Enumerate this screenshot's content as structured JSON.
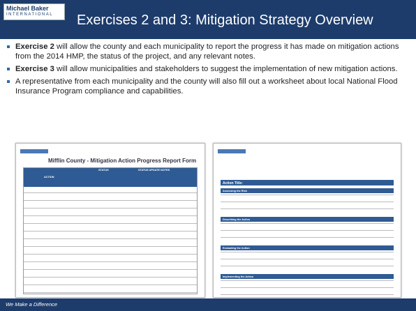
{
  "header": {
    "logo_line1": "Michael Baker",
    "logo_line2": "INTERNATIONAL",
    "title": "Exercises 2 and 3: Mitigation Strategy Overview"
  },
  "bullets": [
    {
      "bold": "Exercise 2",
      "text": " will allow the county and each municipality to report the progress it has made on mitigation actions from the 2014 HMP, the status of the project, and any relevant notes."
    },
    {
      "bold": "Exercise 3",
      "text": " will allow municipalities and stakeholders to suggest the implementation of new mitigation actions."
    },
    {
      "bold": "",
      "text": "A representative from each municipality and the county will also fill out a worksheet about local National Flood Insurance Program compliance and capabilities."
    }
  ],
  "forms": {
    "left": {
      "title": "Mifflin County - Mitigation Action Progress Report Form",
      "columns": [
        "ACTION",
        "STATUS",
        "STATUS UPDATE NOTES"
      ]
    },
    "right": {
      "title": "Action Title:",
      "rows": [
        "Assessing the Risk",
        "Describing the Action",
        "Evaluating the Action",
        "Implementing the Action"
      ]
    }
  },
  "footer": {
    "tagline": "We Make a Difference"
  }
}
